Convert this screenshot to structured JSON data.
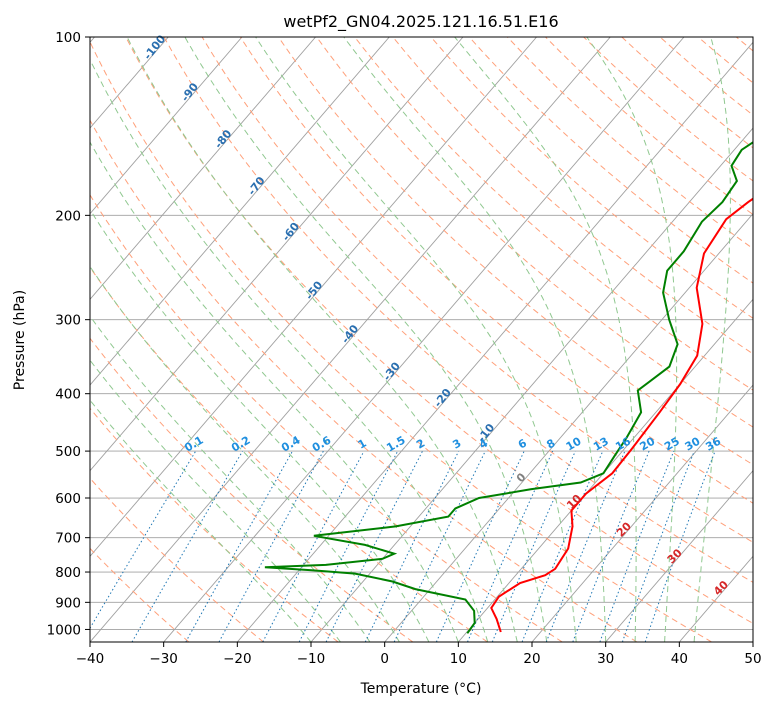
{
  "chart_data": {
    "type": "line",
    "subtype": "skew-t log-p diagram",
    "title": "wetPf2_GN04.2025.121.16.51.E16",
    "xlabel": "Temperature (°C)",
    "ylabel": "Pressure (hPa)",
    "xlim": [
      -40,
      50
    ],
    "ylim": [
      1050,
      100
    ],
    "y_scale": "log",
    "grid": true,
    "x_ticks": [
      "−40",
      "−30",
      "−20",
      "−10",
      "0",
      "10",
      "20",
      "30",
      "40",
      "50"
    ],
    "y_ticks": [
      "100",
      "200",
      "300",
      "400",
      "500",
      "600",
      "700",
      "800",
      "900",
      "1000"
    ],
    "colors": {
      "temperature": "#ff0000",
      "dewpoint": "#008000",
      "isotherms": "#a0a0a0",
      "dry_adiabats": "#ffa07a",
      "moist_adiabats": "#90c890",
      "mixing_ratio": "#1f77b4",
      "mixing_ratio_labels": "#1f8fdf",
      "isotherm_labels": "#2a6fb0",
      "warm_labels": "#d62728",
      "zero_label": "#808080"
    },
    "series": [
      {
        "role": "temperature",
        "points": [
          [
            14.6,
            1010
          ],
          [
            12.5,
            960
          ],
          [
            10.5,
            920
          ],
          [
            10.2,
            880
          ],
          [
            11.5,
            835
          ],
          [
            14.0,
            810
          ],
          [
            14.6,
            790
          ],
          [
            14.0,
            730
          ],
          [
            12.0,
            670
          ],
          [
            10.0,
            630
          ],
          [
            10.0,
            590
          ],
          [
            11.2,
            545
          ],
          [
            11.0,
            495
          ],
          [
            10.5,
            430
          ],
          [
            10.0,
            385
          ],
          [
            9.0,
            345
          ],
          [
            6.0,
            305
          ],
          [
            1.0,
            265
          ],
          [
            -2.0,
            232
          ],
          [
            -3.0,
            203
          ],
          [
            -2.0,
            190
          ],
          [
            -0.5,
            176
          ],
          [
            1.0,
            167
          ],
          [
            3.5,
            159
          ],
          [
            5.5,
            153
          ],
          [
            10.0,
            133
          ],
          [
            12.0,
            122
          ],
          [
            14.0,
            108
          ],
          [
            16.0,
            100
          ]
        ]
      },
      {
        "role": "dewpoint",
        "points": [
          [
            10.2,
            1015
          ],
          [
            10.0,
            975
          ],
          [
            8.5,
            930
          ],
          [
            6.0,
            890
          ],
          [
            -2.0,
            855
          ],
          [
            -6.0,
            830
          ],
          [
            -12.0,
            805
          ],
          [
            -18.0,
            795
          ],
          [
            -25.0,
            785
          ],
          [
            -17.0,
            778
          ],
          [
            -10.0,
            760
          ],
          [
            -9.0,
            745
          ],
          [
            -14.0,
            720
          ],
          [
            -22.0,
            695
          ],
          [
            -12.0,
            670
          ],
          [
            -6.0,
            645
          ],
          [
            -6.0,
            625
          ],
          [
            -4.0,
            600
          ],
          [
            2.0,
            580
          ],
          [
            8.0,
            565
          ],
          [
            10.0,
            545
          ],
          [
            9.5,
            510
          ],
          [
            9.0,
            475
          ],
          [
            8.0,
            430
          ],
          [
            5.0,
            395
          ],
          [
            6.5,
            360
          ],
          [
            5.0,
            330
          ],
          [
            1.0,
            300
          ],
          [
            -3.0,
            270
          ],
          [
            -5.0,
            248
          ],
          [
            -5.0,
            230
          ],
          [
            -6.0,
            205
          ],
          [
            -5.5,
            190
          ],
          [
            -6.0,
            175
          ],
          [
            -8.5,
            165
          ],
          [
            -9.0,
            155
          ],
          [
            -7.5,
            145
          ],
          [
            -6.5,
            133
          ],
          [
            -6.5,
            125
          ],
          [
            -4.0,
            115
          ],
          [
            -2.0,
            108
          ],
          [
            0.0,
            100
          ]
        ]
      }
    ],
    "isotherm_labels": [
      "-100",
      "-90",
      "-80",
      "-70",
      "-60",
      "-50",
      "-40",
      "-30",
      "-20",
      "-10"
    ],
    "mixing_ratio_labels": [
      "0.1",
      "0.2",
      "0.4",
      "0.6",
      "1",
      "1.5",
      "2",
      "3",
      "4",
      "6",
      "8",
      "10",
      "13",
      "16",
      "20",
      "25",
      "30",
      "36"
    ],
    "temperature_labels": [
      "0",
      "10",
      "20",
      "30",
      "40"
    ]
  }
}
